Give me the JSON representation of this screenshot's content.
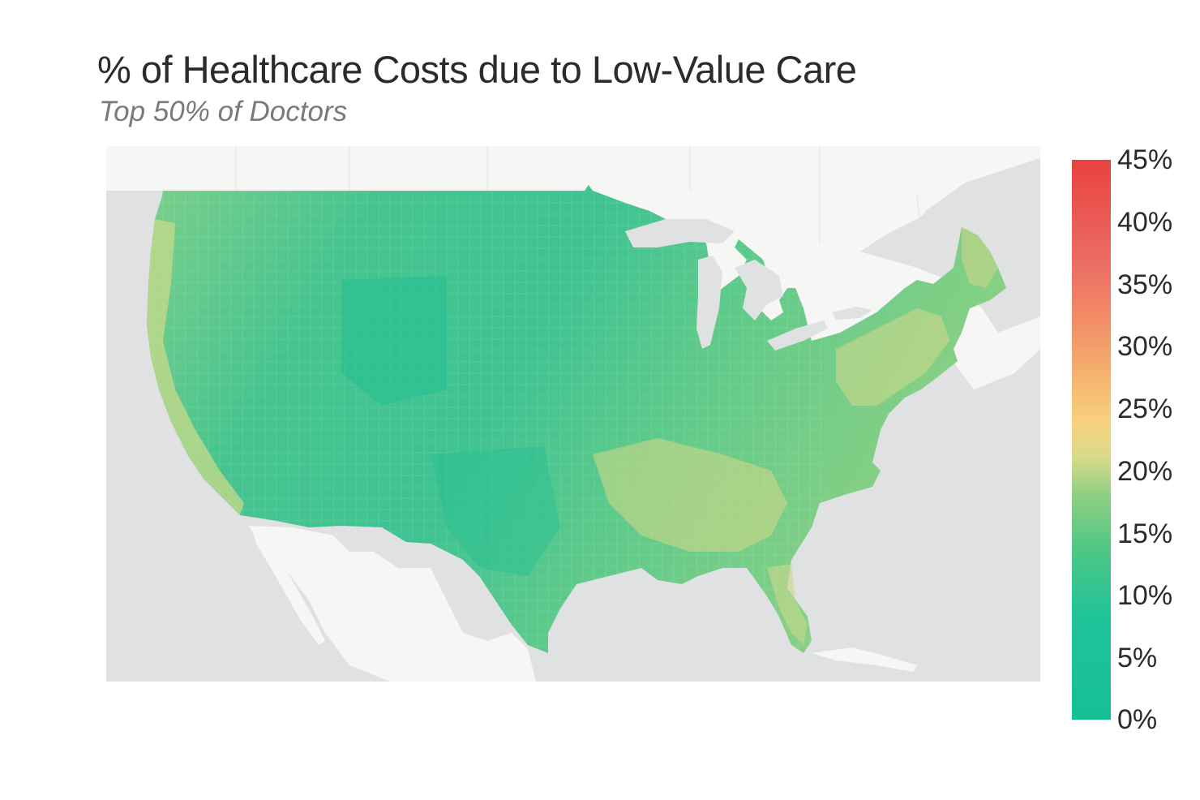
{
  "title": "% of Healthcare Costs due to Low-Value Care",
  "subtitle": "Top 50% of Doctors",
  "map": {
    "region": "United States (contiguous), county level",
    "metric": "% of Healthcare Costs due to Low-Value Care",
    "colors": {
      "water": "#dfe1e3",
      "land_outside": "#f6f6f4",
      "low": "#17bf95",
      "mid": "#9bd281",
      "yellow": "#f2d67e",
      "high": "#e8423f"
    }
  },
  "legend": {
    "min": 0,
    "max": 45,
    "ticks": [
      "45%",
      "40%",
      "35%",
      "30%",
      "25%",
      "20%",
      "15%",
      "10%",
      "5%",
      "0%"
    ]
  }
}
